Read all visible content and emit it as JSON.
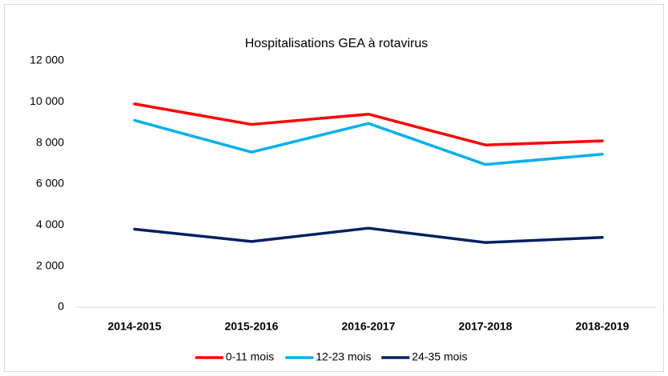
{
  "chart_data": {
    "type": "line",
    "title": "Hospitalisations GEA à rotavirus",
    "categories": [
      "2014-2015",
      "2015-2016",
      "2016-2017",
      "2017-2018",
      "2018-2019"
    ],
    "series": [
      {
        "name": "0-11 mois",
        "color": "#ff0000",
        "values": [
          9900,
          8900,
          9400,
          7900,
          8100
        ]
      },
      {
        "name": "12-23 mois",
        "color": "#00b0f0",
        "values": [
          9100,
          7550,
          8950,
          6950,
          7450
        ]
      },
      {
        "name": "24-35 mois",
        "color": "#002060",
        "values": [
          3800,
          3200,
          3850,
          3150,
          3400
        ]
      }
    ],
    "ylim": [
      0,
      12000
    ],
    "yticks": [
      0,
      {
        "value": 2000,
        "label": "2 000"
      },
      {
        "value": 4000,
        "label": "4 000"
      },
      {
        "value": 6000,
        "label": "6 000"
      },
      {
        "value": 8000,
        "label": "8 000"
      },
      {
        "value": 10000,
        "label": "10 000"
      },
      {
        "value": 12000,
        "label": "12 000"
      }
    ],
    "grid": false,
    "legend": "bottom"
  }
}
